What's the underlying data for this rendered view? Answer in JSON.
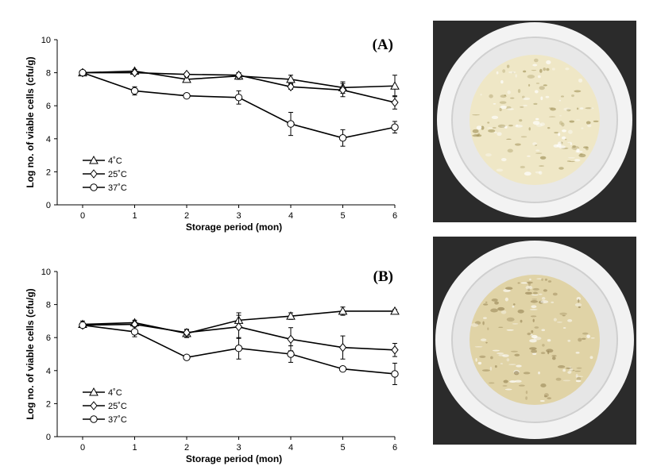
{
  "chart_data": [
    {
      "type": "line",
      "panel_label": "(A)",
      "xlabel": "Storage period (mon)",
      "ylabel": "Log no. of viable cells (cfu/g)",
      "x": [
        0,
        1,
        2,
        3,
        4,
        5,
        6
      ],
      "xlim": [
        0,
        6
      ],
      "ylim": [
        0,
        10
      ],
      "yticks": [
        0,
        2,
        4,
        6,
        8,
        10
      ],
      "grid": false,
      "legend_position": "bottom-left",
      "series": [
        {
          "name": "4˚C",
          "marker": "triangle",
          "values": [
            8.0,
            8.1,
            7.6,
            7.8,
            7.6,
            7.1,
            7.2
          ],
          "errors": [
            0.05,
            0.1,
            0.15,
            0.2,
            0.25,
            0.35,
            0.65
          ]
        },
        {
          "name": "25˚C",
          "marker": "diamond",
          "values": [
            8.0,
            8.0,
            7.9,
            7.85,
            7.15,
            6.95,
            6.2
          ],
          "errors": [
            0.05,
            0.1,
            0.1,
            0.15,
            0.15,
            0.4,
            0.4
          ]
        },
        {
          "name": "37˚C",
          "marker": "circle",
          "values": [
            8.0,
            6.9,
            6.6,
            6.5,
            4.9,
            4.05,
            4.7
          ],
          "errors": [
            0.05,
            0.25,
            0.1,
            0.4,
            0.7,
            0.5,
            0.35
          ]
        }
      ]
    },
    {
      "type": "line",
      "panel_label": "(B)",
      "xlabel": "Storage period (mon)",
      "ylabel": "Log no. of viable cells (cfu/g)",
      "x": [
        0,
        1,
        2,
        3,
        4,
        5,
        6
      ],
      "xlim": [
        0,
        6
      ],
      "ylim": [
        0,
        10
      ],
      "yticks": [
        0,
        2,
        4,
        6,
        8,
        10
      ],
      "grid": false,
      "legend_position": "bottom-left",
      "series": [
        {
          "name": "4˚C",
          "marker": "triangle",
          "values": [
            6.8,
            6.9,
            6.25,
            7.05,
            7.3,
            7.6,
            7.6
          ],
          "errors": [
            0.2,
            0.15,
            0.25,
            0.45,
            0.2,
            0.25,
            0.1
          ]
        },
        {
          "name": "25˚C",
          "marker": "diamond",
          "values": [
            6.75,
            6.8,
            6.3,
            6.65,
            5.9,
            5.4,
            5.25
          ],
          "errors": [
            0.15,
            0.15,
            0.15,
            0.7,
            0.7,
            0.7,
            0.4
          ]
        },
        {
          "name": "37˚C",
          "marker": "circle",
          "values": [
            6.75,
            6.35,
            4.8,
            5.35,
            5.0,
            4.1,
            3.8
          ],
          "errors": [
            0.15,
            0.3,
            0.05,
            0.65,
            0.5,
            0.05,
            0.65
          ]
        }
      ]
    }
  ],
  "photos": [
    {
      "name": "photo-a",
      "cup_fill": "#efe7c6",
      "speckle": "#a89a62"
    },
    {
      "name": "photo-b",
      "cup_fill": "#e0d3a6",
      "speckle": "#9c8a5a"
    }
  ]
}
